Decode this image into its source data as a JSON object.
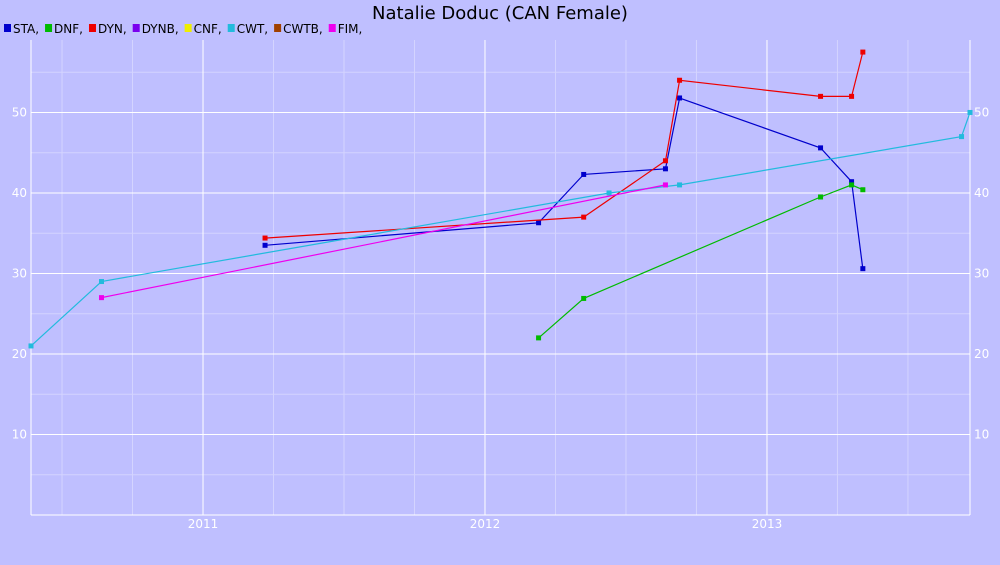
{
  "chart_data": {
    "type": "line",
    "title": "Natalie Doduc (CAN Female)",
    "xlabel": "",
    "ylabel": "",
    "x_ticks": [
      {
        "label": "2011",
        "value": 2011.0
      },
      {
        "label": "2012",
        "value": 2012.0
      },
      {
        "label": "2013",
        "value": 2013.0
      }
    ],
    "x_range": [
      2010.39,
      2013.72
    ],
    "y_range": [
      0,
      59
    ],
    "y_ticks": [
      10,
      20,
      30,
      40,
      50
    ],
    "legend_placement": "top-left",
    "grid": true,
    "series": [
      {
        "name": "STA",
        "color": "#0000cc",
        "points": [
          [
            2011.22,
            33.5
          ],
          [
            2012.19,
            36.3
          ],
          [
            2012.35,
            42.3
          ],
          [
            2012.64,
            43.0
          ],
          [
            2012.69,
            51.8
          ],
          [
            2013.19,
            45.6
          ],
          [
            2013.3,
            41.4
          ],
          [
            2013.34,
            30.6
          ]
        ]
      },
      {
        "name": "DNF",
        "color": "#00bb00",
        "points": [
          [
            2012.19,
            22.0
          ],
          [
            2012.35,
            26.9
          ],
          [
            2013.19,
            39.5
          ],
          [
            2013.3,
            41.0
          ],
          [
            2013.34,
            40.4
          ]
        ]
      },
      {
        "name": "DYN",
        "color": "#ee0000",
        "points": [
          [
            2011.22,
            34.4
          ],
          [
            2012.35,
            37.0
          ],
          [
            2012.64,
            44.0
          ],
          [
            2012.69,
            54.0
          ],
          [
            2013.19,
            52.0
          ],
          [
            2013.3,
            52.0
          ],
          [
            2013.34,
            57.5
          ]
        ]
      },
      {
        "name": "DYNB",
        "color": "#7a00ee",
        "points": []
      },
      {
        "name": "CNF",
        "color": "#eeee00",
        "points": []
      },
      {
        "name": "CWT",
        "color": "#22bbdd",
        "points": [
          [
            2010.39,
            21.0
          ],
          [
            2010.64,
            29.0
          ],
          [
            2012.44,
            40.0
          ],
          [
            2012.69,
            41.0
          ],
          [
            2013.69,
            47.0
          ],
          [
            2013.72,
            50.0
          ]
        ]
      },
      {
        "name": "CWTB",
        "color": "#a04000",
        "points": []
      },
      {
        "name": "FIM",
        "color": "#ee00ee",
        "points": [
          [
            2010.64,
            27.0
          ],
          [
            2012.64,
            41.0
          ]
        ]
      }
    ]
  }
}
